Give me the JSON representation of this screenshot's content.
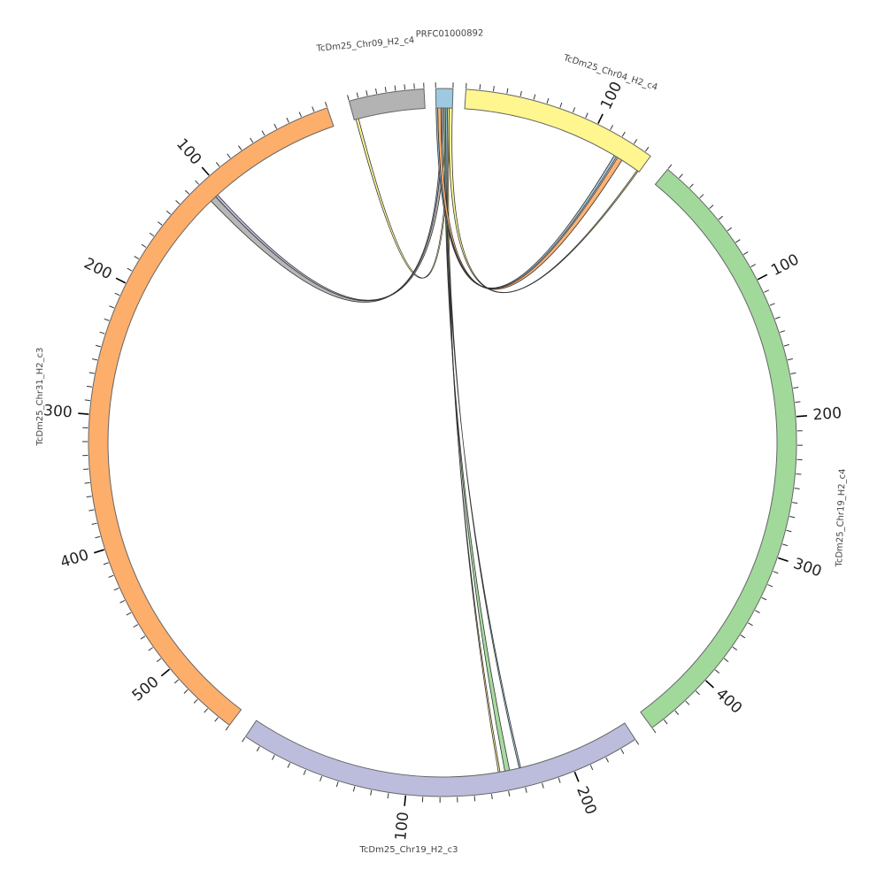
{
  "chart_data": {
    "type": "chord",
    "segments": [
      {
        "id": "PRFC01000892",
        "label": "PRFC01000892",
        "color": "#9ecae1",
        "length": 10,
        "tick_labels": []
      },
      {
        "id": "chr04",
        "label": "TcDm25_Chr04_H2_c4",
        "color": "#fff68f",
        "length": 145,
        "tick_labels": [
          {
            "value": 100,
            "text": "100"
          }
        ]
      },
      {
        "id": "chr19c4",
        "label": "TcDm25_Chr19_H2_c4",
        "color": "#a1d99b",
        "length": 450,
        "tick_labels": [
          {
            "value": 100,
            "text": "100"
          },
          {
            "value": 200,
            "text": "200"
          },
          {
            "value": 300,
            "text": "300"
          },
          {
            "value": 400,
            "text": "400"
          }
        ]
      },
      {
        "id": "chr19c3",
        "label": "TcDm25_Chr19_H2_c3",
        "color": "#bcbddc",
        "length": 240,
        "tick_labels": [
          {
            "value": 100,
            "text": "100"
          },
          {
            "value": 200,
            "text": "200"
          }
        ]
      },
      {
        "id": "chr31",
        "label": "TcDm25_Chr31_H2_c3",
        "color": "#fdae6b",
        "length": 560,
        "tick_labels": [
          {
            "value": 100,
            "text": "100"
          },
          {
            "value": 200,
            "text": "200"
          },
          {
            "value": 300,
            "text": "300"
          },
          {
            "value": 400,
            "text": "400"
          },
          {
            "value": 500,
            "text": "500"
          }
        ]
      },
      {
        "id": "chr09",
        "label": "TcDm25_Chr09_H2_c4",
        "color": "#b3b3b3",
        "length": 80,
        "tick_labels": []
      }
    ],
    "links": [
      {
        "a": "chr09",
        "a_start": 75,
        "a_end": 78,
        "b": "PRFC01000892",
        "b_start": 8,
        "b_end": 9,
        "color": "#fff68f"
      },
      {
        "a": "PRFC01000892",
        "a_start": 4,
        "a_end": 6,
        "b": "chr31",
        "b_start": 107,
        "b_end": 112,
        "color": "#b3b3b3"
      },
      {
        "a": "PRFC01000892",
        "a_start": 3,
        "a_end": 4,
        "b": "chr31",
        "b_start": 105,
        "b_end": 107,
        "color": "#bcbddc"
      },
      {
        "a": "PRFC01000892",
        "a_start": 5,
        "a_end": 6,
        "b": "chr19c3",
        "b_start": 160,
        "b_end": 163,
        "color": "#a1d99b"
      },
      {
        "a": "PRFC01000892",
        "a_start": 6,
        "a_end": 7,
        "b": "chr19c3",
        "b_start": 169,
        "b_end": 170,
        "color": "#9ecae1"
      },
      {
        "a": "PRFC01000892",
        "a_start": 7,
        "a_end": 8,
        "b": "chr19c3",
        "b_start": 156,
        "b_end": 157,
        "color": "#fff68f"
      },
      {
        "a": "PRFC01000892",
        "a_start": 1,
        "a_end": 3,
        "b": "chr04",
        "b_start": 125,
        "b_end": 129,
        "color": "#fdae6b"
      },
      {
        "a": "PRFC01000892",
        "a_start": 0,
        "a_end": 1,
        "b": "chr04",
        "b_start": 122,
        "b_end": 124,
        "color": "#9ecae1"
      },
      {
        "a": "PRFC01000892",
        "a_start": 8,
        "a_end": 10,
        "b": "chr04",
        "b_start": 143,
        "b_end": 144,
        "color": "#fff68f"
      }
    ]
  }
}
